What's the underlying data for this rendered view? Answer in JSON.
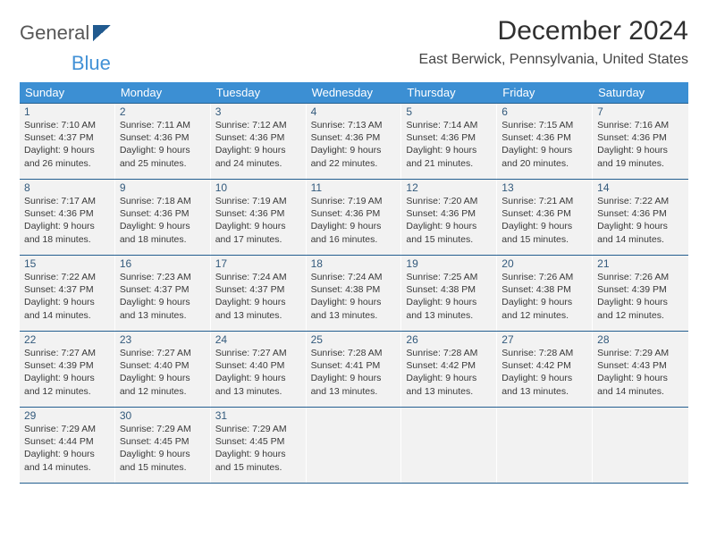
{
  "brand": {
    "text1": "General",
    "text2": "Blue"
  },
  "title": "December 2024",
  "location": "East Berwick, Pennsylvania, United States",
  "colors": {
    "header_bg": "#3c8fd3",
    "header_text": "#ffffff",
    "week_divider": "#245f90",
    "cell_bg": "#f2f2f2",
    "daynum": "#335a7c",
    "body_text": "#393939"
  },
  "weekdays": [
    "Sunday",
    "Monday",
    "Tuesday",
    "Wednesday",
    "Thursday",
    "Friday",
    "Saturday"
  ],
  "weeks": [
    [
      {
        "n": 1,
        "sunrise": "7:10 AM",
        "sunset": "4:37 PM",
        "daylight": "9 hours and 26 minutes."
      },
      {
        "n": 2,
        "sunrise": "7:11 AM",
        "sunset": "4:36 PM",
        "daylight": "9 hours and 25 minutes."
      },
      {
        "n": 3,
        "sunrise": "7:12 AM",
        "sunset": "4:36 PM",
        "daylight": "9 hours and 24 minutes."
      },
      {
        "n": 4,
        "sunrise": "7:13 AM",
        "sunset": "4:36 PM",
        "daylight": "9 hours and 22 minutes."
      },
      {
        "n": 5,
        "sunrise": "7:14 AM",
        "sunset": "4:36 PM",
        "daylight": "9 hours and 21 minutes."
      },
      {
        "n": 6,
        "sunrise": "7:15 AM",
        "sunset": "4:36 PM",
        "daylight": "9 hours and 20 minutes."
      },
      {
        "n": 7,
        "sunrise": "7:16 AM",
        "sunset": "4:36 PM",
        "daylight": "9 hours and 19 minutes."
      }
    ],
    [
      {
        "n": 8,
        "sunrise": "7:17 AM",
        "sunset": "4:36 PM",
        "daylight": "9 hours and 18 minutes."
      },
      {
        "n": 9,
        "sunrise": "7:18 AM",
        "sunset": "4:36 PM",
        "daylight": "9 hours and 18 minutes."
      },
      {
        "n": 10,
        "sunrise": "7:19 AM",
        "sunset": "4:36 PM",
        "daylight": "9 hours and 17 minutes."
      },
      {
        "n": 11,
        "sunrise": "7:19 AM",
        "sunset": "4:36 PM",
        "daylight": "9 hours and 16 minutes."
      },
      {
        "n": 12,
        "sunrise": "7:20 AM",
        "sunset": "4:36 PM",
        "daylight": "9 hours and 15 minutes."
      },
      {
        "n": 13,
        "sunrise": "7:21 AM",
        "sunset": "4:36 PM",
        "daylight": "9 hours and 15 minutes."
      },
      {
        "n": 14,
        "sunrise": "7:22 AM",
        "sunset": "4:36 PM",
        "daylight": "9 hours and 14 minutes."
      }
    ],
    [
      {
        "n": 15,
        "sunrise": "7:22 AM",
        "sunset": "4:37 PM",
        "daylight": "9 hours and 14 minutes."
      },
      {
        "n": 16,
        "sunrise": "7:23 AM",
        "sunset": "4:37 PM",
        "daylight": "9 hours and 13 minutes."
      },
      {
        "n": 17,
        "sunrise": "7:24 AM",
        "sunset": "4:37 PM",
        "daylight": "9 hours and 13 minutes."
      },
      {
        "n": 18,
        "sunrise": "7:24 AM",
        "sunset": "4:38 PM",
        "daylight": "9 hours and 13 minutes."
      },
      {
        "n": 19,
        "sunrise": "7:25 AM",
        "sunset": "4:38 PM",
        "daylight": "9 hours and 13 minutes."
      },
      {
        "n": 20,
        "sunrise": "7:26 AM",
        "sunset": "4:38 PM",
        "daylight": "9 hours and 12 minutes."
      },
      {
        "n": 21,
        "sunrise": "7:26 AM",
        "sunset": "4:39 PM",
        "daylight": "9 hours and 12 minutes."
      }
    ],
    [
      {
        "n": 22,
        "sunrise": "7:27 AM",
        "sunset": "4:39 PM",
        "daylight": "9 hours and 12 minutes."
      },
      {
        "n": 23,
        "sunrise": "7:27 AM",
        "sunset": "4:40 PM",
        "daylight": "9 hours and 12 minutes."
      },
      {
        "n": 24,
        "sunrise": "7:27 AM",
        "sunset": "4:40 PM",
        "daylight": "9 hours and 13 minutes."
      },
      {
        "n": 25,
        "sunrise": "7:28 AM",
        "sunset": "4:41 PM",
        "daylight": "9 hours and 13 minutes."
      },
      {
        "n": 26,
        "sunrise": "7:28 AM",
        "sunset": "4:42 PM",
        "daylight": "9 hours and 13 minutes."
      },
      {
        "n": 27,
        "sunrise": "7:28 AM",
        "sunset": "4:42 PM",
        "daylight": "9 hours and 13 minutes."
      },
      {
        "n": 28,
        "sunrise": "7:29 AM",
        "sunset": "4:43 PM",
        "daylight": "9 hours and 14 minutes."
      }
    ],
    [
      {
        "n": 29,
        "sunrise": "7:29 AM",
        "sunset": "4:44 PM",
        "daylight": "9 hours and 14 minutes."
      },
      {
        "n": 30,
        "sunrise": "7:29 AM",
        "sunset": "4:45 PM",
        "daylight": "9 hours and 15 minutes."
      },
      {
        "n": 31,
        "sunrise": "7:29 AM",
        "sunset": "4:45 PM",
        "daylight": "9 hours and 15 minutes."
      },
      null,
      null,
      null,
      null
    ]
  ],
  "labels": {
    "sunrise": "Sunrise: ",
    "sunset": "Sunset: ",
    "daylight": "Daylight: "
  }
}
